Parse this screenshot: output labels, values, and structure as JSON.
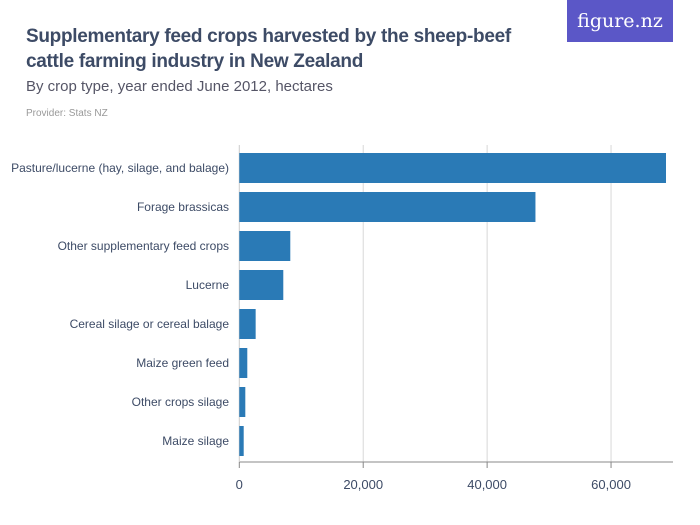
{
  "logo": "figure.nz",
  "chart_data": {
    "type": "bar",
    "orientation": "horizontal",
    "title": "Supplementary feed crops harvested by the sheep-beef cattle farming industry in New Zealand",
    "subtitle": "By crop type, year ended June 2012, hectares",
    "provider": "Provider: Stats NZ",
    "categories": [
      "Pasture/lucerne (hay, silage, and balage)",
      "Forage brassicas",
      "Other supplementary feed crops",
      "Lucerne",
      "Cereal silage or cereal balage",
      "Maize green feed",
      "Other crops silage",
      "Maize silage"
    ],
    "values": [
      68870,
      47800,
      8230,
      7100,
      2640,
      1290,
      970,
      710
    ],
    "xlim": [
      0,
      70000
    ],
    "xticks": [
      0,
      20000,
      40000,
      60000
    ],
    "xtick_labels": [
      "0",
      "20,000",
      "40,000",
      "60,000"
    ],
    "grid": true,
    "bar_color": "#2a7ab6"
  }
}
